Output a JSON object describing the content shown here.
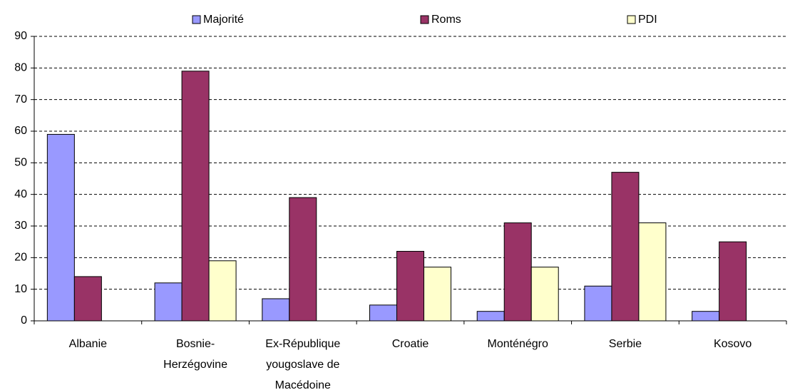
{
  "chart_data": {
    "type": "bar",
    "categories": [
      "Albanie",
      "Bosnie-Herzégovine",
      "Ex-République yougoslave de Macédoine",
      "Croatie",
      "Monténégro",
      "Serbie",
      "Kosovo"
    ],
    "series": [
      {
        "name": "Majorité",
        "color": "#9999ff",
        "values": [
          59,
          12,
          7,
          5,
          3,
          11,
          3
        ]
      },
      {
        "name": "Roms",
        "color": "#993366",
        "values": [
          14,
          79,
          39,
          22,
          31,
          47,
          25
        ]
      },
      {
        "name": "PDI",
        "color": "#ffffcc",
        "values": [
          null,
          19,
          null,
          17,
          17,
          31,
          null
        ]
      }
    ],
    "ylim": [
      0,
      90
    ],
    "yticks": [
      0,
      10,
      20,
      30,
      40,
      50,
      60,
      70,
      80,
      90
    ],
    "grid": true,
    "legend": "top"
  }
}
